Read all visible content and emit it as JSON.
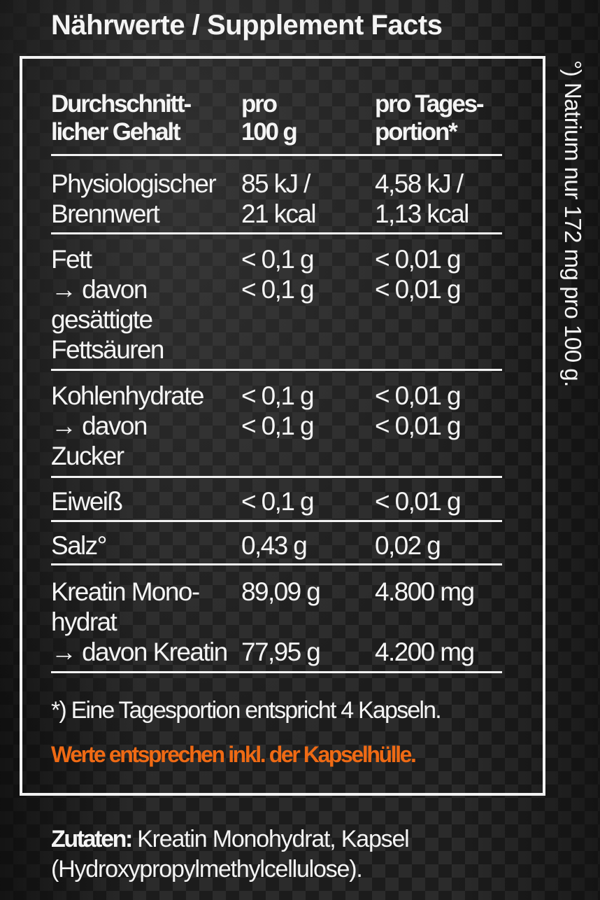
{
  "title": "Nährwerte / Supplement Facts",
  "side_note": "°) Natrium nur 172 mg pro 100 g.",
  "header": {
    "col1": [
      "Durchschnitt-",
      "licher Gehalt"
    ],
    "col2": [
      "pro",
      "100 g"
    ],
    "col3": [
      "pro Tages-",
      "portion*"
    ]
  },
  "rows": [
    {
      "label": [
        "Physiologischer",
        "Brennwert"
      ],
      "per100": [
        "85 kJ /",
        "21 kcal"
      ],
      "perDay": [
        "4,58 kJ /",
        "1,13 kcal"
      ]
    },
    {
      "label": [
        "Fett",
        "→ davon",
        "gesättigte",
        "Fettsäuren"
      ],
      "per100": [
        "< 0,1 g",
        "< 0,1 g"
      ],
      "perDay": [
        "< 0,01 g",
        "< 0,01 g"
      ]
    },
    {
      "label": [
        "Kohlenhydrate",
        "→ davon",
        "Zucker"
      ],
      "per100": [
        "< 0,1 g",
        "< 0,1 g"
      ],
      "perDay": [
        "< 0,01 g",
        "< 0,01 g"
      ]
    },
    {
      "label": [
        "Eiweiß"
      ],
      "per100": [
        "< 0,1 g"
      ],
      "perDay": [
        "< 0,01 g"
      ]
    },
    {
      "label": [
        "Salz°"
      ],
      "per100": [
        "0,43 g"
      ],
      "perDay": [
        "0,02 g"
      ]
    },
    {
      "label": [
        "Kreatin Mono-",
        "hydrat",
        "→ davon Kreatin"
      ],
      "per100": [
        "89,09 g",
        "",
        "77,95 g"
      ],
      "perDay": [
        "4.800 mg",
        "",
        "4.200 mg"
      ]
    }
  ],
  "footnote": "*) Eine Tagesportion entspricht 4 Kapseln.",
  "warning": "Werte entsprechen inkl. der Kapselhülle.",
  "ingredients": {
    "label": "Zutaten:",
    "text": " Kreatin Monohydrat, Kapsel",
    "text2": "(Hydroxypropylmethylcellulose)."
  },
  "colors": {
    "accent": "#ef6a14",
    "text": "#f4f4f4",
    "background": "#222222"
  }
}
